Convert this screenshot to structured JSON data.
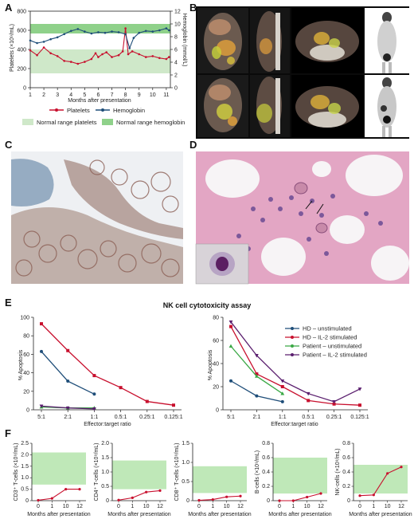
{
  "panels": {
    "A": "A",
    "B": "B",
    "C": "C",
    "D": "D",
    "E": "E",
    "F": "F"
  },
  "colors": {
    "platelets": "#c8102e",
    "hemoglobin": "#1f4e79",
    "normal_platelets": "#cfe8c9",
    "normal_hemoglobin": "#8fd18a",
    "hd_unstim": "#1f4e79",
    "hd_il2": "#c8102e",
    "pt_unstim": "#3aa845",
    "pt_il2": "#5a1e6e",
    "panelF_band": "#bfe8b8",
    "panelF_line": "#c8102e"
  },
  "chart_data": [
    {
      "id": "A",
      "type": "line",
      "xlabel": "Months after presentation",
      "ylabel_left": "Platelets (×10⁹/mL)",
      "ylabel_right": "Hemoglobin (mmol/L)",
      "xticks": [
        "1",
        "2",
        "3",
        "4",
        "5",
        "6",
        "7",
        "8",
        "9",
        "10",
        "11"
      ],
      "xlim": [
        1,
        11.3
      ],
      "yleft_ticks": [
        "0",
        "200",
        "400",
        "600",
        "800"
      ],
      "yleft_lim": [
        0,
        800
      ],
      "yright_ticks": [
        "0",
        "2",
        "4",
        "6",
        "8",
        "10",
        "12"
      ],
      "yright_lim": [
        0,
        12
      ],
      "normal_platelets_range": [
        150,
        400
      ],
      "normal_hemoglobin_range": [
        8.5,
        10
      ],
      "series": [
        {
          "name": "Platelets",
          "axis": "left",
          "color_key": "platelets",
          "x": [
            1.0,
            1.5,
            2.0,
            2.5,
            3.0,
            3.5,
            4.0,
            4.5,
            5.0,
            5.5,
            5.8,
            6.0,
            6.3,
            6.6,
            7.0,
            7.5,
            7.8,
            8.0,
            8.2,
            8.5,
            9.0,
            9.5,
            10.0,
            10.5,
            11.0,
            11.2
          ],
          "values": [
            390,
            340,
            420,
            360,
            330,
            280,
            270,
            250,
            270,
            300,
            360,
            320,
            350,
            370,
            320,
            340,
            380,
            620,
            350,
            380,
            350,
            320,
            330,
            310,
            300,
            320
          ]
        },
        {
          "name": "Hemoglobin",
          "axis": "right",
          "color_key": "hemoglobin",
          "x": [
            1.0,
            1.5,
            2.0,
            2.5,
            3.0,
            3.5,
            4.0,
            4.5,
            5.0,
            5.5,
            6.0,
            6.5,
            7.0,
            7.5,
            8.0,
            8.3,
            8.6,
            9.0,
            9.5,
            10.0,
            10.5,
            11.0,
            11.2
          ],
          "values": [
            7.4,
            7.0,
            7.2,
            7.6,
            7.9,
            8.4,
            8.9,
            9.2,
            8.8,
            8.5,
            8.7,
            8.6,
            8.8,
            8.7,
            8.4,
            6.2,
            7.8,
            8.6,
            8.9,
            8.8,
            9.0,
            9.3,
            9.0
          ]
        }
      ],
      "legend": {
        "platelets": "Platelets",
        "hemoglobin": "Hemoglobin",
        "normal_platelets": "Normal range platelets",
        "normal_hemoglobin": "Normal range hemoglobin"
      }
    },
    {
      "id": "E",
      "title": "NK cell cytotoxicity assay",
      "type": "line",
      "xlabel": "Effector:target ratio",
      "ylabel": "% Apoptosis",
      "categories": [
        "5:1",
        "2:1",
        "1:1",
        "0.5:1",
        "0.25:1",
        "0.125:1"
      ],
      "left": {
        "ylim": [
          0,
          100
        ],
        "yticks": [
          "0",
          "20",
          "40",
          "60",
          "80",
          "100"
        ],
        "series": [
          {
            "name": "HD – unstimulated",
            "color_key": "hd_unstim",
            "values": [
              63,
              31,
              17,
              null,
              null,
              null
            ]
          },
          {
            "name": "HD – IL-2 stimulated",
            "color_key": "hd_il2",
            "values": [
              93,
              64,
              37,
              24,
              9,
              5
            ]
          },
          {
            "name": "Patient – unstimulated",
            "color_key": "pt_unstim",
            "values": [
              3,
              2,
              2,
              null,
              null,
              null
            ]
          },
          {
            "name": "Patient – IL-2 stimulated",
            "color_key": "pt_il2",
            "values": [
              4,
              2,
              1,
              null,
              null,
              null
            ]
          }
        ]
      },
      "right": {
        "ylim": [
          0,
          80
        ],
        "yticks": [
          "0",
          "20",
          "40",
          "60",
          "80"
        ],
        "series": [
          {
            "name": "HD – unstimulated",
            "color_key": "hd_unstim",
            "values": [
              25,
              12,
              7,
              null,
              null,
              null
            ]
          },
          {
            "name": "HD – IL-2 stimulated",
            "color_key": "hd_il2",
            "values": [
              72,
              31,
              20,
              8,
              5,
              4
            ]
          },
          {
            "name": "Patient – unstimulated",
            "color_key": "pt_unstim",
            "values": [
              55,
              29,
              14,
              null,
              null,
              null
            ]
          },
          {
            "name": "Patient – IL-2 stimulated",
            "color_key": "pt_il2",
            "values": [
              76,
              47,
              25,
              14,
              7,
              18
            ]
          }
        ]
      },
      "legend": [
        "HD – unstimulated",
        "HD – IL-2 stimulated",
        "Patient – unstimulated",
        "Patient – IL-2 stimulated"
      ]
    },
    {
      "id": "F",
      "type": "line",
      "xlabel": "Months after presentation",
      "xticks": [
        "0",
        "1",
        "10",
        "12"
      ],
      "plots": [
        {
          "ylabel": "CD3⁺ T-cells (×10⁹/mL)",
          "yticks": [
            "0",
            "0.5",
            "1.0",
            "1.5",
            "2.0",
            "2.5"
          ],
          "ylim": [
            0,
            2.5
          ],
          "band": [
            0.7,
            2.1
          ],
          "values": [
            0.02,
            0.1,
            0.5,
            0.5
          ]
        },
        {
          "ylabel": "CD4⁺ T-cells (×10⁹/mL)",
          "yticks": [
            "0",
            "0.5",
            "1.0",
            "1.5",
            "2.0"
          ],
          "ylim": [
            0,
            2.0
          ],
          "band": [
            0.4,
            1.4
          ],
          "values": [
            0.02,
            0.1,
            0.3,
            0.35
          ]
        },
        {
          "ylabel": "CD8⁺ T-cells (×10⁹/mL)",
          "yticks": [
            "0",
            "0.5",
            "1.0",
            "1.5"
          ],
          "ylim": [
            0,
            1.5
          ],
          "band": [
            0.2,
            0.9
          ],
          "values": [
            0.01,
            0.03,
            0.1,
            0.12
          ]
        },
        {
          "ylabel": "B-cells (×10⁹/mL)",
          "yticks": [
            "0",
            "0.2",
            "0.4",
            "0.6",
            "0.8"
          ],
          "ylim": [
            0,
            0.8
          ],
          "band": [
            0.1,
            0.6
          ],
          "values": [
            0.0,
            0.0,
            0.05,
            0.1
          ]
        },
        {
          "ylabel": "NK-cells (×10⁹/mL)",
          "yticks": [
            "0",
            "0.2",
            "0.4",
            "0.6",
            "0.8"
          ],
          "ylim": [
            0,
            0.8
          ],
          "band": [
            0.1,
            0.5
          ],
          "values": [
            0.07,
            0.08,
            0.38,
            0.47
          ]
        }
      ]
    }
  ]
}
